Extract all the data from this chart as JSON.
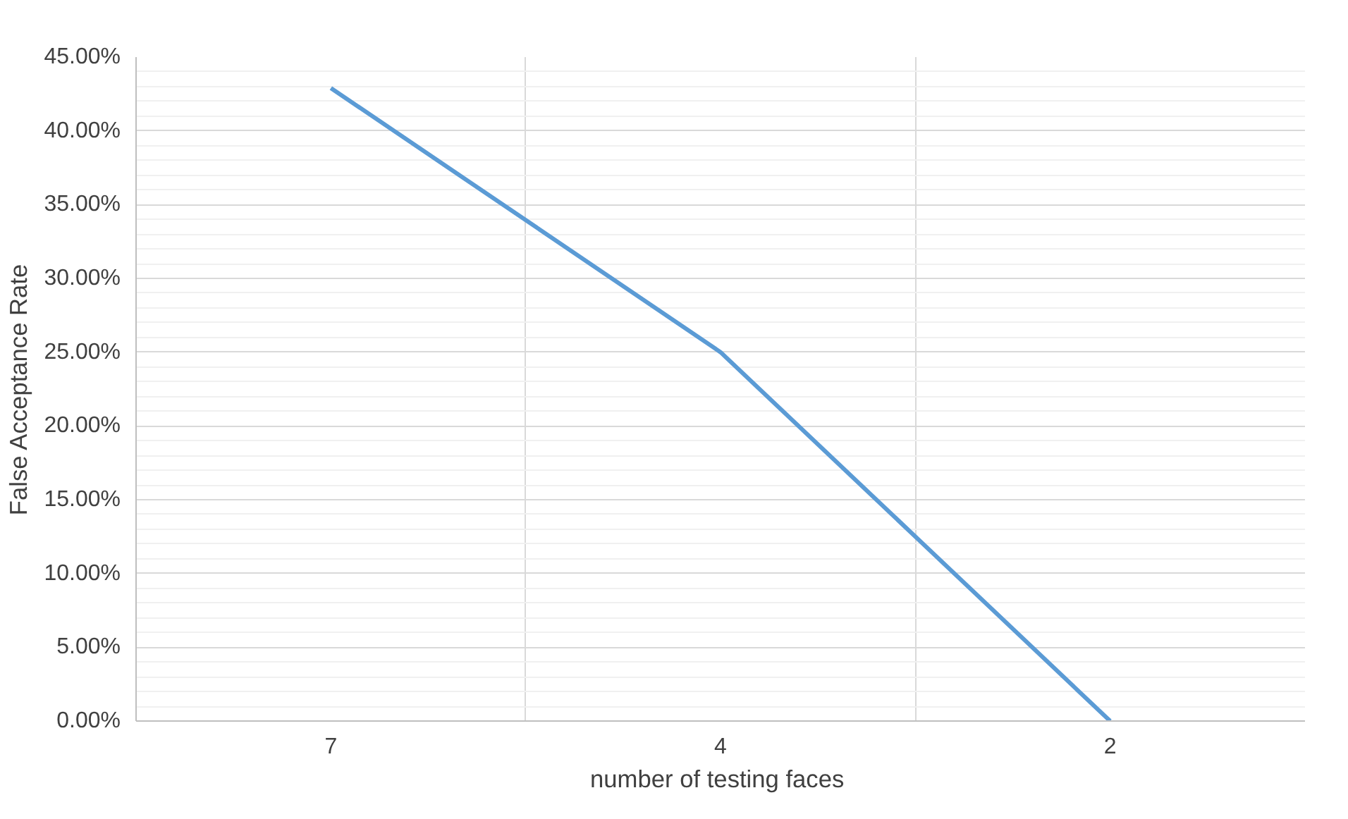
{
  "chart_data": {
    "type": "line",
    "xlabel": "number of testing  faces",
    "ylabel": "False Acceptance Rate",
    "categories": [
      "7",
      "4",
      "2"
    ],
    "series": [
      {
        "color": "#5b9bd5",
        "values": [
          42.9,
          25,
          0
        ]
      }
    ],
    "ylim": [
      0,
      45
    ],
    "yticks": [
      {
        "value": 0,
        "label": "0.00%"
      },
      {
        "value": 5,
        "label": "5.00%"
      },
      {
        "value": 10,
        "label": "10.00%"
      },
      {
        "value": 15,
        "label": "15.00%"
      },
      {
        "value": 20,
        "label": "20.00%"
      },
      {
        "value": 25,
        "label": "25.00%"
      },
      {
        "value": 30,
        "label": "30.00%"
      },
      {
        "value": 35,
        "label": "35.00%"
      },
      {
        "value": 40,
        "label": "40.00%"
      },
      {
        "value": 45,
        "label": "45.00%"
      }
    ],
    "grid": true,
    "marker": "none",
    "line_style": "solid"
  }
}
